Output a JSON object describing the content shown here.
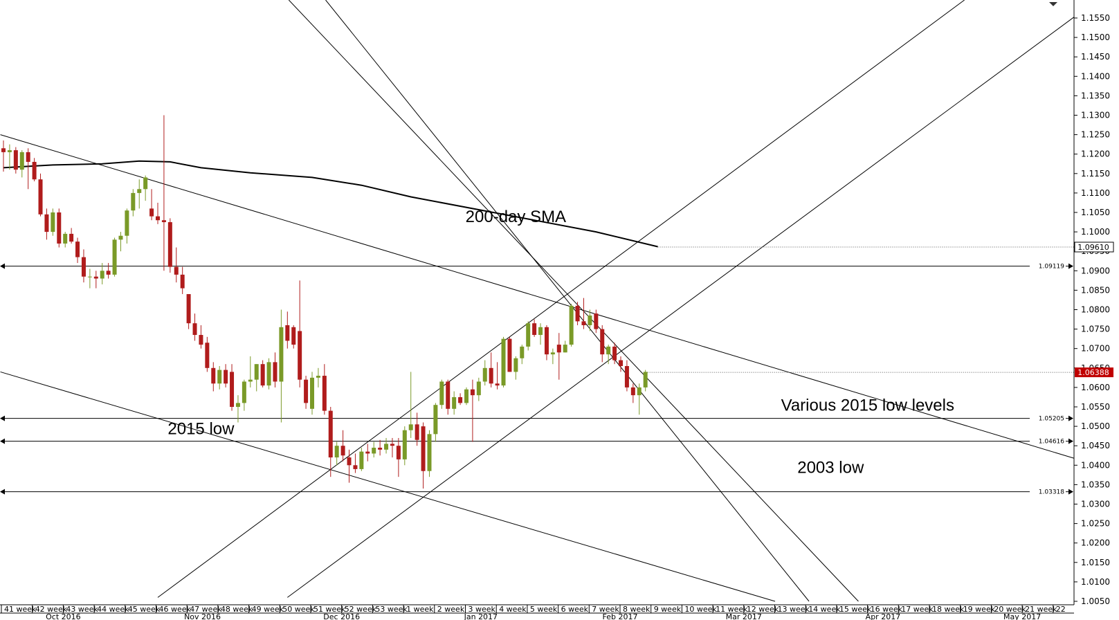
{
  "chart_data": {
    "type": "candlestick",
    "ylim": [
      1.005,
      1.16
    ],
    "y_ticks": [
      "1.1550",
      "1.1500",
      "1.1450",
      "1.1400",
      "1.1350",
      "1.1300",
      "1.1250",
      "1.1200",
      "1.1150",
      "1.1100",
      "1.1050",
      "1.1000",
      "1.0950",
      "1.0900",
      "1.0850",
      "1.0800",
      "1.0750",
      "1.0700",
      "1.0650",
      "1.0600",
      "1.0550",
      "1.0500",
      "1.0450",
      "1.0400",
      "1.0350",
      "1.0300",
      "1.0250",
      "1.0200",
      "1.0150",
      "1.0100",
      "1.0050"
    ],
    "week_labels": [
      "41 week",
      "42 week",
      "43 week",
      "44 week",
      "45 week",
      "46 week",
      "47 week",
      "48 week",
      "49 week",
      "50 week",
      "51 week",
      "52 week",
      "53 week",
      "1 week",
      "2 week",
      "3 week",
      "4 week",
      "5 week",
      "6 week",
      "7 week",
      "8 week",
      "9 week",
      "10 week",
      "11 week",
      "12 week",
      "13 week",
      "14 week",
      "15 week",
      "16 week",
      "17 week",
      "18 week",
      "19 week",
      "20 week",
      "21 week",
      "22"
    ],
    "month_labels": [
      {
        "label": "Oct 2016",
        "week_index": 1.0
      },
      {
        "label": "Nov 2016",
        "week_index": 5.5
      },
      {
        "label": "Dec 2016",
        "week_index": 10.0
      },
      {
        "label": "Jan 2017",
        "week_index": 14.5
      },
      {
        "label": "Feb 2017",
        "week_index": 19.0
      },
      {
        "label": "Mar 2017",
        "week_index": 23.0
      },
      {
        "label": "Apr 2017",
        "week_index": 27.5
      },
      {
        "label": "May 2017",
        "week_index": 32.0
      }
    ],
    "candles": [
      {
        "o": 1.1215,
        "h": 1.1235,
        "l": 1.1155,
        "c": 1.1205
      },
      {
        "o": 1.1205,
        "h": 1.1225,
        "l": 1.116,
        "c": 1.121
      },
      {
        "o": 1.121,
        "h": 1.1218,
        "l": 1.115,
        "c": 1.116
      },
      {
        "o": 1.116,
        "h": 1.121,
        "l": 1.114,
        "c": 1.1205
      },
      {
        "o": 1.1205,
        "h": 1.1215,
        "l": 1.111,
        "c": 1.118
      },
      {
        "o": 1.118,
        "h": 1.119,
        "l": 1.113,
        "c": 1.1135
      },
      {
        "o": 1.1135,
        "h": 1.115,
        "l": 1.104,
        "c": 1.1045
      },
      {
        "o": 1.1045,
        "h": 1.106,
        "l": 1.098,
        "c": 1.1
      },
      {
        "o": 1.1,
        "h": 1.106,
        "l": 1.099,
        "c": 1.105
      },
      {
        "o": 1.105,
        "h": 1.106,
        "l": 1.096,
        "c": 1.097
      },
      {
        "o": 1.097,
        "h": 1.1,
        "l": 1.096,
        "c": 1.0995
      },
      {
        "o": 1.0995,
        "h": 1.101,
        "l": 1.097,
        "c": 1.0975
      },
      {
        "o": 1.0975,
        "h": 1.0985,
        "l": 1.092,
        "c": 1.0935
      },
      {
        "o": 1.0935,
        "h": 1.0955,
        "l": 1.087,
        "c": 1.0885
      },
      {
        "o": 1.0885,
        "h": 1.0905,
        "l": 1.0855,
        "c": 1.0885
      },
      {
        "o": 1.0885,
        "h": 1.09,
        "l": 1.0855,
        "c": 1.088
      },
      {
        "o": 1.088,
        "h": 1.092,
        "l": 1.0865,
        "c": 1.09
      },
      {
        "o": 1.09,
        "h": 1.092,
        "l": 1.088,
        "c": 1.089
      },
      {
        "o": 1.089,
        "h": 1.0985,
        "l": 1.0885,
        "c": 1.098
      },
      {
        "o": 1.098,
        "h": 1.1,
        "l": 1.095,
        "c": 1.099
      },
      {
        "o": 1.099,
        "h": 1.106,
        "l": 1.097,
        "c": 1.1055
      },
      {
        "o": 1.1055,
        "h": 1.111,
        "l": 1.104,
        "c": 1.11
      },
      {
        "o": 1.11,
        "h": 1.1135,
        "l": 1.106,
        "c": 1.111
      },
      {
        "o": 1.111,
        "h": 1.1145,
        "l": 1.108,
        "c": 1.114
      },
      {
        "o": 1.106,
        "h": 1.111,
        "l": 1.103,
        "c": 1.104
      },
      {
        "o": 1.104,
        "h": 1.1075,
        "l": 1.102,
        "c": 1.103
      },
      {
        "o": 1.103,
        "h": 1.13,
        "l": 1.09,
        "c": 1.1025
      },
      {
        "o": 1.1025,
        "h": 1.1035,
        "l": 1.0895,
        "c": 1.091
      },
      {
        "o": 1.091,
        "h": 1.096,
        "l": 1.087,
        "c": 1.089
      },
      {
        "o": 1.089,
        "h": 1.091,
        "l": 1.084,
        "c": 1.0855
      },
      {
        "o": 1.084,
        "h": 1.084,
        "l": 1.075,
        "c": 1.0765
      },
      {
        "o": 1.0765,
        "h": 1.079,
        "l": 1.072,
        "c": 1.0735
      },
      {
        "o": 1.0735,
        "h": 1.076,
        "l": 1.07,
        "c": 1.071
      },
      {
        "o": 1.0715,
        "h": 1.073,
        "l": 1.064,
        "c": 1.065
      },
      {
        "o": 1.065,
        "h": 1.0665,
        "l": 1.059,
        "c": 1.061
      },
      {
        "o": 1.061,
        "h": 1.0655,
        "l": 1.0595,
        "c": 1.0645
      },
      {
        "o": 1.0645,
        "h": 1.066,
        "l": 1.06,
        "c": 1.061
      },
      {
        "o": 1.064,
        "h": 1.066,
        "l": 1.054,
        "c": 1.055
      },
      {
        "o": 1.055,
        "h": 1.058,
        "l": 1.051,
        "c": 1.056
      },
      {
        "o": 1.056,
        "h": 1.062,
        "l": 1.054,
        "c": 1.0615
      },
      {
        "o": 1.0615,
        "h": 1.068,
        "l": 1.06,
        "c": 1.062
      },
      {
        "o": 1.062,
        "h": 1.066,
        "l": 1.059,
        "c": 1.066
      },
      {
        "o": 1.066,
        "h": 1.067,
        "l": 1.06,
        "c": 1.0605
      },
      {
        "o": 1.0605,
        "h": 1.0675,
        "l": 1.0595,
        "c": 1.0665
      },
      {
        "o": 1.0665,
        "h": 1.069,
        "l": 1.06,
        "c": 1.0615
      },
      {
        "o": 1.0615,
        "h": 1.08,
        "l": 1.051,
        "c": 1.0755
      },
      {
        "o": 1.076,
        "h": 1.0795,
        "l": 1.07,
        "c": 1.072
      },
      {
        "o": 1.0755,
        "h": 1.076,
        "l": 1.07,
        "c": 1.071
      },
      {
        "o": 1.0745,
        "h": 1.0875,
        "l": 1.06,
        "c": 1.062
      },
      {
        "o": 1.062,
        "h": 1.063,
        "l": 1.0545,
        "c": 1.056
      },
      {
        "o": 1.0545,
        "h": 1.064,
        "l": 1.053,
        "c": 1.0625
      },
      {
        "o": 1.0625,
        "h": 1.065,
        "l": 1.06,
        "c": 1.063
      },
      {
        "o": 1.063,
        "h": 1.066,
        "l": 1.053,
        "c": 1.054
      },
      {
        "o": 1.054,
        "h": 1.055,
        "l": 1.037,
        "c": 1.042
      },
      {
        "o": 1.042,
        "h": 1.046,
        "l": 1.04,
        "c": 1.045
      },
      {
        "o": 1.045,
        "h": 1.049,
        "l": 1.041,
        "c": 1.0425
      },
      {
        "o": 1.042,
        "h": 1.044,
        "l": 1.0355,
        "c": 1.04
      },
      {
        "o": 1.04,
        "h": 1.043,
        "l": 1.038,
        "c": 1.039
      },
      {
        "o": 1.039,
        "h": 1.0445,
        "l": 1.0385,
        "c": 1.0435
      },
      {
        "o": 1.0435,
        "h": 1.0455,
        "l": 1.041,
        "c": 1.043
      },
      {
        "o": 1.043,
        "h": 1.046,
        "l": 1.042,
        "c": 1.0445
      },
      {
        "o": 1.0445,
        "h": 1.0465,
        "l": 1.0425,
        "c": 1.044
      },
      {
        "o": 1.044,
        "h": 1.047,
        "l": 1.043,
        "c": 1.0455
      },
      {
        "o": 1.0455,
        "h": 1.047,
        "l": 1.042,
        "c": 1.045
      },
      {
        "o": 1.045,
        "h": 1.047,
        "l": 1.037,
        "c": 1.0415
      },
      {
        "o": 1.0415,
        "h": 1.05,
        "l": 1.04,
        "c": 1.049
      },
      {
        "o": 1.049,
        "h": 1.064,
        "l": 1.047,
        "c": 1.0505
      },
      {
        "o": 1.0505,
        "h": 1.0535,
        "l": 1.045,
        "c": 1.0465
      },
      {
        "o": 1.05,
        "h": 1.051,
        "l": 1.034,
        "c": 1.0385
      },
      {
        "o": 1.0385,
        "h": 1.049,
        "l": 1.037,
        "c": 1.048
      },
      {
        "o": 1.048,
        "h": 1.056,
        "l": 1.046,
        "c": 1.0555
      },
      {
        "o": 1.0555,
        "h": 1.062,
        "l": 1.0545,
        "c": 1.0615
      },
      {
        "o": 1.0615,
        "h": 1.062,
        "l": 1.053,
        "c": 1.0545
      },
      {
        "o": 1.0545,
        "h": 1.059,
        "l": 1.053,
        "c": 1.0575
      },
      {
        "o": 1.0575,
        "h": 1.0585,
        "l": 1.0555,
        "c": 1.056
      },
      {
        "o": 1.056,
        "h": 1.06,
        "l": 1.0555,
        "c": 1.0595
      },
      {
        "o": 1.0595,
        "h": 1.062,
        "l": 1.046,
        "c": 1.058
      },
      {
        "o": 1.058,
        "h": 1.0625,
        "l": 1.0565,
        "c": 1.0615
      },
      {
        "o": 1.0615,
        "h": 1.067,
        "l": 1.0605,
        "c": 1.065
      },
      {
        "o": 1.065,
        "h": 1.069,
        "l": 1.06,
        "c": 1.061
      },
      {
        "o": 1.061,
        "h": 1.0665,
        "l": 1.0595,
        "c": 1.0605
      },
      {
        "o": 1.0605,
        "h": 1.073,
        "l": 1.06,
        "c": 1.0725
      },
      {
        "o": 1.0725,
        "h": 1.073,
        "l": 1.064,
        "c": 1.064
      },
      {
        "o": 1.064,
        "h": 1.068,
        "l": 1.062,
        "c": 1.0675
      },
      {
        "o": 1.0675,
        "h": 1.071,
        "l": 1.066,
        "c": 1.0705
      },
      {
        "o": 1.0705,
        "h": 1.077,
        "l": 1.0695,
        "c": 1.0765
      },
      {
        "o": 1.0765,
        "h": 1.0775,
        "l": 1.073,
        "c": 1.0735
      },
      {
        "o": 1.0735,
        "h": 1.0765,
        "l": 1.071,
        "c": 1.0755
      },
      {
        "o": 1.0755,
        "h": 1.076,
        "l": 1.067,
        "c": 1.0685
      },
      {
        "o": 1.0685,
        "h": 1.07,
        "l": 1.066,
        "c": 1.069
      },
      {
        "o": 1.071,
        "h": 1.074,
        "l": 1.062,
        "c": 1.069
      },
      {
        "o": 1.069,
        "h": 1.072,
        "l": 1.069,
        "c": 1.071
      },
      {
        "o": 1.071,
        "h": 1.0815,
        "l": 1.0705,
        "c": 1.081
      },
      {
        "o": 1.081,
        "h": 1.082,
        "l": 1.076,
        "c": 1.077
      },
      {
        "o": 1.077,
        "h": 1.083,
        "l": 1.075,
        "c": 1.076
      },
      {
        "o": 1.076,
        "h": 1.08,
        "l": 1.0745,
        "c": 1.0785
      },
      {
        "o": 1.079,
        "h": 1.08,
        "l": 1.074,
        "c": 1.075
      },
      {
        "o": 1.075,
        "h": 1.076,
        "l": 1.0665,
        "c": 1.0685
      },
      {
        "o": 1.0685,
        "h": 1.071,
        "l": 1.066,
        "c": 1.0705
      },
      {
        "o": 1.0705,
        "h": 1.0715,
        "l": 1.066,
        "c": 1.067
      },
      {
        "o": 1.067,
        "h": 1.068,
        "l": 1.064,
        "c": 1.0655
      },
      {
        "o": 1.0655,
        "h": 1.067,
        "l": 1.059,
        "c": 1.06
      },
      {
        "o": 1.06,
        "h": 1.061,
        "l": 1.056,
        "c": 1.058
      },
      {
        "o": 1.058,
        "h": 1.061,
        "l": 1.053,
        "c": 1.06
      },
      {
        "o": 1.06,
        "h": 1.0645,
        "l": 1.059,
        "c": 1.064
      }
    ],
    "sma_200": [
      {
        "i": 0,
        "v": 1.1165
      },
      {
        "i": 8,
        "v": 1.1172
      },
      {
        "i": 16,
        "v": 1.1175
      },
      {
        "i": 22,
        "v": 1.1182
      },
      {
        "i": 27,
        "v": 1.118
      },
      {
        "i": 32,
        "v": 1.1165
      },
      {
        "i": 40,
        "v": 1.1152
      },
      {
        "i": 50,
        "v": 1.114
      },
      {
        "i": 58,
        "v": 1.112
      },
      {
        "i": 66,
        "v": 1.109
      },
      {
        "i": 76,
        "v": 1.106
      },
      {
        "i": 86,
        "v": 1.103
      },
      {
        "i": 96,
        "v": 1.1
      },
      {
        "i": 106,
        "v": 1.0962
      }
    ],
    "horizontal_levels": [
      {
        "value": 1.09119,
        "label": "1.09119"
      },
      {
        "value": 1.05205,
        "label": "1.05205"
      },
      {
        "value": 1.04616,
        "label": "1.04616"
      },
      {
        "value": 1.03318,
        "label": "1.03318"
      }
    ],
    "price_badges": [
      {
        "value": 1.0961,
        "label": "1.09610",
        "style": "sma"
      },
      {
        "value": 1.06388,
        "label": "1.06388",
        "style": "price"
      }
    ],
    "annotations": [
      {
        "text": "200-day SMA",
        "x_index": 83,
        "y": 1.1025
      },
      {
        "text": "Various 2015 low levels",
        "x_index": 140,
        "y": 1.054
      },
      {
        "text": "2015 low",
        "x_index": 32,
        "y": 1.048
      },
      {
        "text": "2003 low",
        "x_index": 134,
        "y": 1.038
      }
    ],
    "trend_lines": [
      {
        "x1": -0.5,
        "y1": 1.125,
        "x2": 187,
        "y2": 1.0353
      },
      {
        "x1": -0.5,
        "y1": 1.064,
        "x2": 125,
        "y2": 1.005
      },
      {
        "x1": 46,
        "y1": 1.16,
        "x2": 138.5,
        "y2": 1.005
      },
      {
        "x1": 52,
        "y1": 1.16,
        "x2": 130.5,
        "y2": 1.005
      },
      {
        "x1": 25,
        "y1": 1.006,
        "x2": 156,
        "y2": 1.16
      },
      {
        "x1": 46,
        "y1": 1.006,
        "x2": 177.5,
        "y2": 1.16
      }
    ],
    "colors": {
      "up": "#7a9a28",
      "down": "#b01c1c",
      "sma": "#000000",
      "line": "#000000",
      "badge_price": "#c00000"
    }
  }
}
